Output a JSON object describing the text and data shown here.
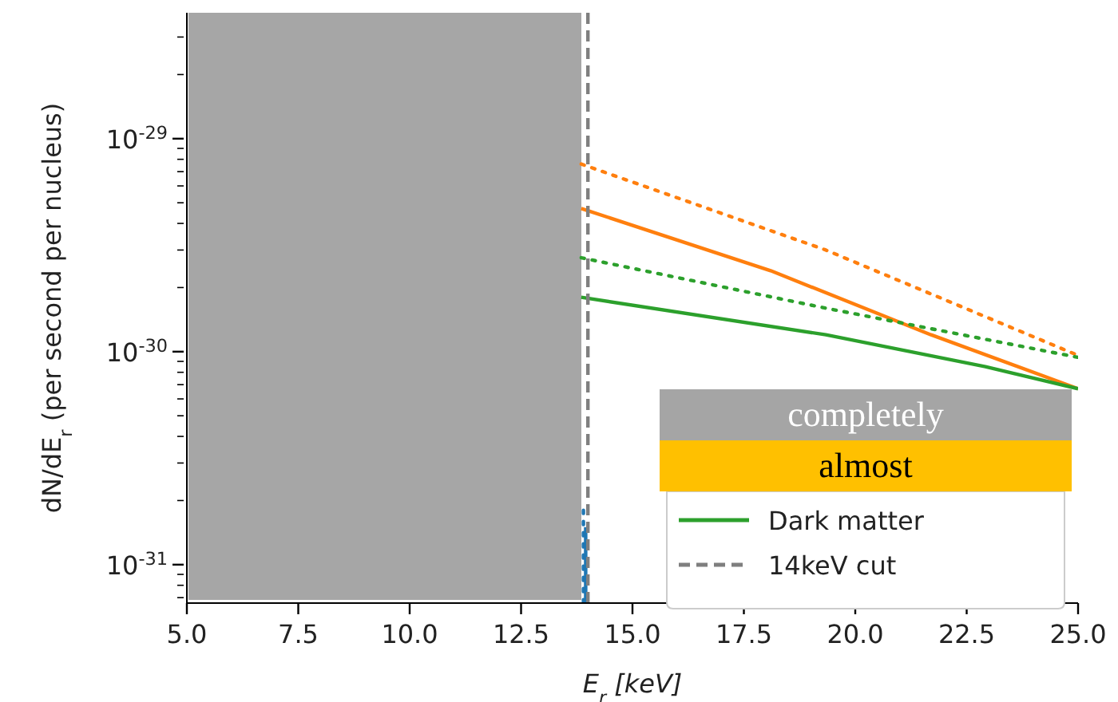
{
  "chart_data": {
    "type": "line",
    "xlabel": "E$_{r}$ [keV]",
    "ylabel": "dN/dE$_{r}$ (per second per nucleus)",
    "annotations": [
      "completely",
      "almost"
    ],
    "log": "y",
    "xlim": [
      5,
      25
    ],
    "xticks": [
      {
        "value": 5,
        "label": "5.0"
      },
      7.5,
      {
        "value": 10,
        "label": "10.0"
      },
      12.5,
      {
        "value": 15,
        "label": "15.0"
      },
      17.5,
      {
        "value": 20,
        "label": "20.0"
      },
      22.5,
      {
        "value": 25,
        "label": "25.0"
      }
    ],
    "ylim": [
      6.6e-32,
      3.9e-29
    ],
    "yticks": [
      {
        "value": 7e-32,
        "label": null
      },
      {
        "value": 8e-32,
        "label": null
      },
      {
        "value": 9e-32,
        "label": null
      },
      {
        "value": 1e-31,
        "label": "10$^{-31}$"
      },
      {
        "value": 2e-31,
        "label": null
      },
      {
        "value": 3e-31,
        "label": null
      },
      {
        "value": 4e-31,
        "label": null
      },
      {
        "value": 5e-31,
        "label": null
      },
      {
        "value": 6e-31,
        "label": null
      },
      {
        "value": 7e-31,
        "label": null
      },
      {
        "value": 8e-31,
        "label": null
      },
      {
        "value": 9e-31,
        "label": null
      },
      {
        "value": 1e-30,
        "label": "10$^{-30}$"
      },
      {
        "value": 2e-30,
        "label": null
      },
      {
        "value": 3e-30,
        "label": null
      },
      {
        "value": 4e-30,
        "label": null
      },
      {
        "value": 5e-30,
        "label": null
      },
      {
        "value": 6e-30,
        "label": null
      },
      {
        "value": 7e-30,
        "label": null
      },
      {
        "value": 8e-30,
        "label": null
      },
      {
        "value": 9e-30,
        "label": null
      },
      {
        "value": 1e-29,
        "label": "10$^{-29}$"
      },
      {
        "value": 2e-29,
        "label": null
      },
      {
        "value": 3e-29,
        "label": null
      }
    ],
    "legend": "bottom right",
    "series": [
      {
        "color": "#ff7f0e",
        "line_style": "dotted",
        "x": [
          13.85,
          19.34,
          25
        ],
        "values": [
          7.6e-30,
          3e-30,
          9.6e-31
        ]
      },
      {
        "color": "#ff7f0e",
        "line_style": "solid",
        "x": [
          13.85,
          18.1,
          21.7,
          25
        ],
        "values": [
          4.7e-30,
          2.4e-30,
          1.2e-30,
          6.7e-31
        ]
      },
      {
        "color": "#2ca02c",
        "line_style": "dotted",
        "x": [
          13.85,
          19.34,
          25
        ],
        "values": [
          2.76e-30,
          1.6e-30,
          9.4e-31
        ]
      },
      {
        "name": "Dark matter",
        "color": "#2ca02c",
        "line_style": "solid",
        "x": [
          13.85,
          19.34,
          22.92,
          25
        ],
        "values": [
          1.8e-30,
          1.2e-30,
          8.5e-31,
          6.7e-31
        ]
      },
      {
        "color": "#1f77b4",
        "line_style": "dotted",
        "x": [
          13.9,
          13.9
        ],
        "values": [
          1.8e-31,
          6.6e-32
        ]
      },
      {
        "color": "#1f77b4",
        "line_style": "solid",
        "x": [
          13.95,
          13.95
        ],
        "values": [
          1.5e-31,
          6.6e-32
        ]
      },
      {
        "name": "14keV cut",
        "color": "#7f7f7f",
        "line_style": "dashed",
        "x": [
          14,
          14
        ],
        "values": [
          6.6e-32,
          3.9e-29
        ]
      }
    ]
  }
}
